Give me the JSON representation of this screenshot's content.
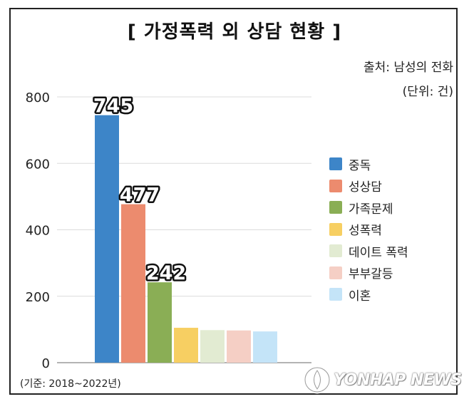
{
  "chart_data": {
    "type": "bar",
    "title": "[ 가정폭력 외 상담 현황 ]",
    "source": "출처: 남성의 전화",
    "unit": "(단위: 건)",
    "basis": "(기준: 2018~2022년)",
    "categories": [
      "중독",
      "성상담",
      "가족문제",
      "성폭력",
      "데이트 폭력",
      "부부갈등",
      "이혼"
    ],
    "values": [
      745,
      477,
      242,
      105,
      98,
      97,
      94
    ],
    "data_labels": [
      "745",
      "477",
      "242",
      "",
      "",
      "",
      ""
    ],
    "colors": [
      "#3d85c8",
      "#ec8b6e",
      "#8aae55",
      "#f7cf62",
      "#e2ebd2",
      "#f5cfc5",
      "#c4e4f8"
    ],
    "yticks": [
      "0",
      "200",
      "400",
      "600",
      "800"
    ],
    "ylim": [
      0,
      800
    ],
    "grid": true,
    "legend_position": "right"
  },
  "watermark": {
    "text": "YONHAP NEWS"
  }
}
